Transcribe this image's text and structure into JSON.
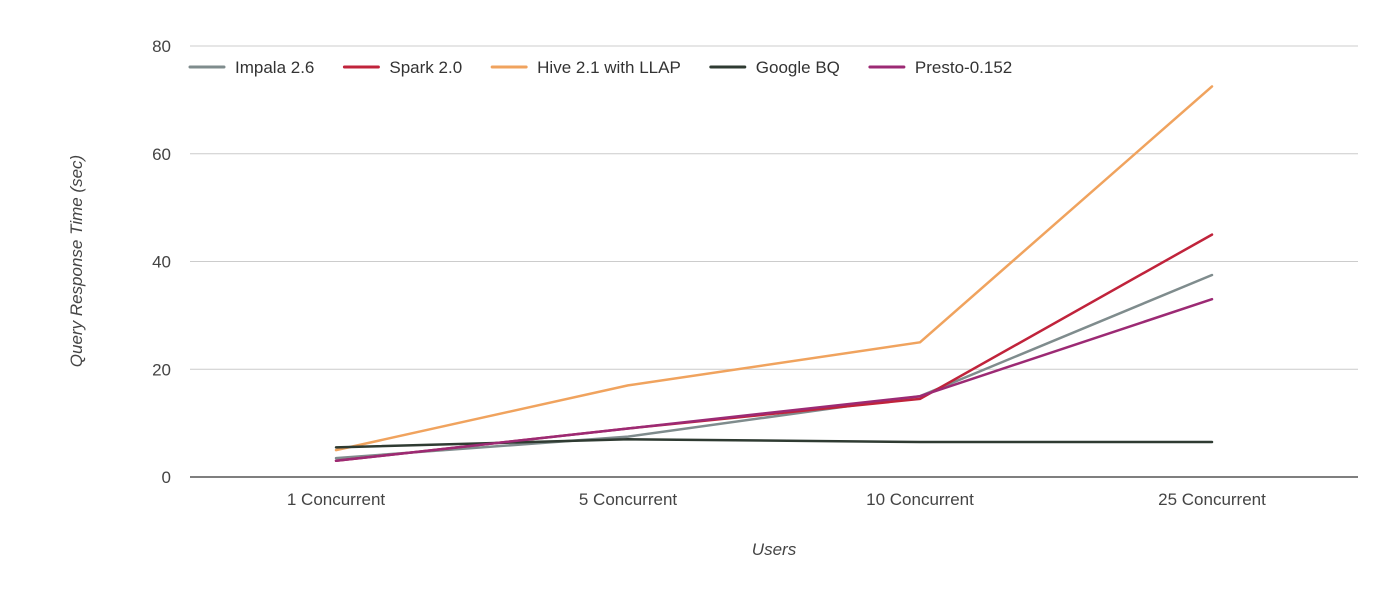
{
  "chart_data": {
    "type": "line",
    "title": "",
    "xlabel": "Users",
    "ylabel": "Query Response Time (sec)",
    "categories": [
      "1 Concurrent",
      "5 Concurrent",
      "10 Concurrent",
      "25 Concurrent"
    ],
    "ylim": [
      0,
      80
    ],
    "yticks": [
      "0",
      "20",
      "40",
      "60",
      "80"
    ],
    "grid": true,
    "legend_position": "top",
    "series": [
      {
        "name": "Impala 2.6",
        "color": "#7f8c8d",
        "values": [
          3.5,
          7.5,
          15,
          37.5
        ]
      },
      {
        "name": "Spark 2.0",
        "color": "#c0233b",
        "values": [
          3,
          9,
          14.5,
          45
        ]
      },
      {
        "name": "Hive 2.1 with LLAP",
        "color": "#f0a35e",
        "values": [
          5,
          17,
          25,
          72.5
        ]
      },
      {
        "name": "Google BQ",
        "color": "#2f3b32",
        "values": [
          5.5,
          7,
          6.5,
          6.5
        ]
      },
      {
        "name": "Presto-0.152",
        "color": "#9c2a74",
        "values": [
          3,
          9,
          15,
          33
        ]
      }
    ]
  }
}
